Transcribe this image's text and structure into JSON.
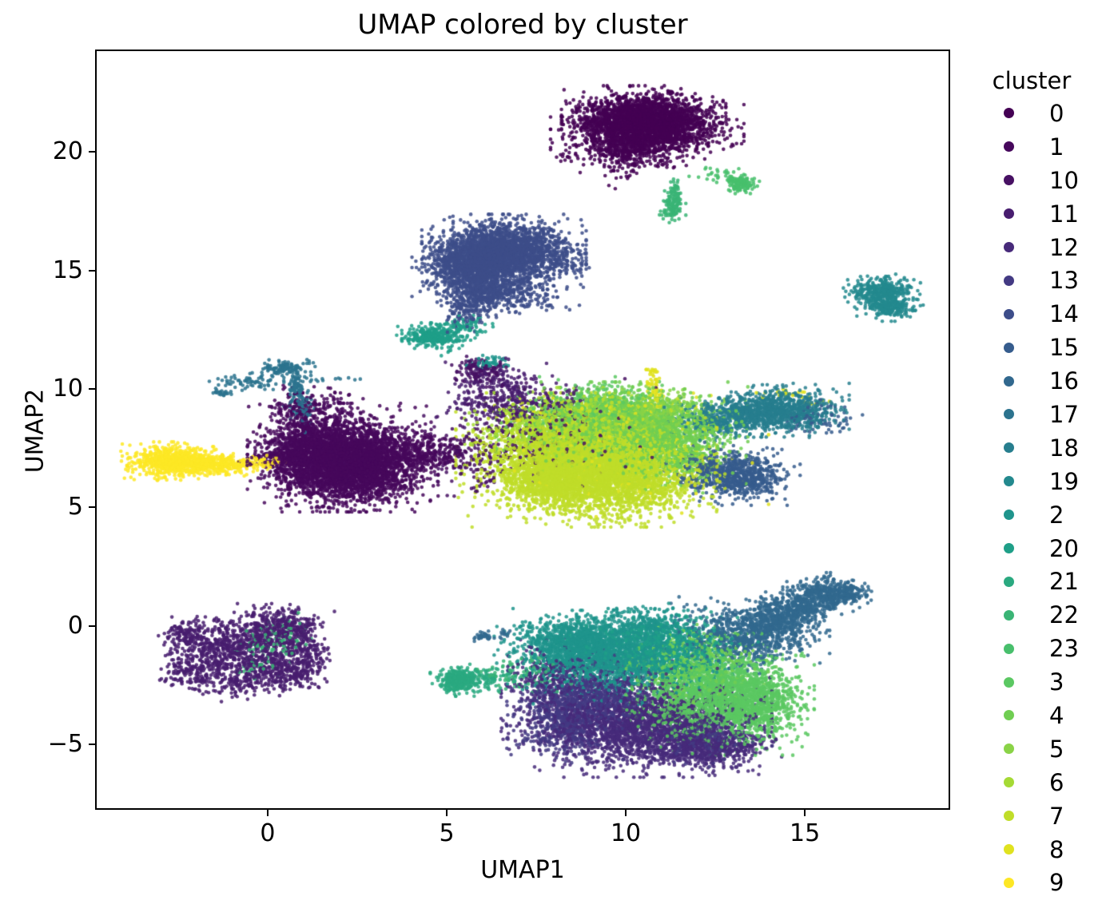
{
  "chart_data": {
    "type": "scatter",
    "title": "UMAP colored by cluster",
    "xlabel": "UMAP1",
    "ylabel": "UMAP2",
    "xlim": [
      -4.82,
      19.06
    ],
    "ylim": [
      -7.77,
      24.33
    ],
    "xticks": [
      0,
      5,
      10,
      15
    ],
    "yticks": [
      -5,
      0,
      5,
      10,
      15,
      20
    ],
    "grid": false,
    "marker": {
      "radius_px": 2.3,
      "alpha": 0.85
    },
    "legend": {
      "title": "cluster",
      "position": "right-outside",
      "entries": [
        {
          "label": "0",
          "color": "#440154"
        },
        {
          "label": "1",
          "color": "#46085c"
        },
        {
          "label": "10",
          "color": "#471063"
        },
        {
          "label": "11",
          "color": "#481d6f"
        },
        {
          "label": "12",
          "color": "#472a7a"
        },
        {
          "label": "13",
          "color": "#433a83"
        },
        {
          "label": "14",
          "color": "#3d4d8a"
        },
        {
          "label": "15",
          "color": "#365c8d"
        },
        {
          "label": "16",
          "color": "#31688e"
        },
        {
          "label": "17",
          "color": "#2c738e"
        },
        {
          "label": "18",
          "color": "#277e8e"
        },
        {
          "label": "19",
          "color": "#23898e"
        },
        {
          "label": "2",
          "color": "#1f948c"
        },
        {
          "label": "20",
          "color": "#1f9f88"
        },
        {
          "label": "21",
          "color": "#2aa980"
        },
        {
          "label": "22",
          "color": "#3ab475"
        },
        {
          "label": "23",
          "color": "#48bf6c"
        },
        {
          "label": "3",
          "color": "#5bc862"
        },
        {
          "label": "4",
          "color": "#70ce52"
        },
        {
          "label": "5",
          "color": "#8ad347"
        },
        {
          "label": "6",
          "color": "#a5da35"
        },
        {
          "label": "7",
          "color": "#c0dd29"
        },
        {
          "label": "8",
          "color": "#e0e21f"
        },
        {
          "label": "9",
          "color": "#fde725"
        }
      ]
    },
    "blobs": [
      {
        "c": "0",
        "n": 1700,
        "x": 10.5,
        "y": 21.45,
        "sx": 0.85,
        "sy": 0.5
      },
      {
        "c": "0",
        "n": 1300,
        "x": 10.6,
        "y": 20.85,
        "sx": 1.0,
        "sy": 0.5
      },
      {
        "c": "0",
        "n": 260,
        "x": 10.05,
        "y": 20.15,
        "sx": 0.55,
        "sy": 0.3
      },
      {
        "c": "0",
        "n": 60,
        "x": 9.85,
        "y": 19.4,
        "sx": 0.3,
        "sy": 0.35
      },
      {
        "c": "0",
        "n": 25,
        "x": 11.2,
        "y": 19.7,
        "sx": 0.3,
        "sy": 0.2
      },
      {
        "c": "0",
        "n": 15,
        "x": 8.4,
        "y": 19.9,
        "sx": 0.2,
        "sy": 0.3
      },
      {
        "c": "23",
        "n": 130,
        "x": 13.2,
        "y": 18.68,
        "sx": 0.2,
        "sy": 0.16
      },
      {
        "c": "23",
        "n": 25,
        "x": 12.55,
        "y": 19.05,
        "sx": 0.3,
        "sy": 0.14
      },
      {
        "c": "22",
        "n": 35,
        "x": 11.37,
        "y": 18.45,
        "sx": 0.07,
        "sy": 0.3
      },
      {
        "c": "22",
        "n": 110,
        "x": 11.3,
        "y": 17.7,
        "sx": 0.14,
        "sy": 0.28
      },
      {
        "c": "14",
        "n": 2400,
        "x": 6.6,
        "y": 15.75,
        "sx": 0.85,
        "sy": 0.6
      },
      {
        "c": "14",
        "n": 800,
        "x": 5.65,
        "y": 15.0,
        "sx": 0.6,
        "sy": 0.55
      },
      {
        "c": "14",
        "n": 450,
        "x": 6.2,
        "y": 14.1,
        "sx": 0.55,
        "sy": 0.4
      },
      {
        "c": "14",
        "n": 130,
        "x": 5.6,
        "y": 13.3,
        "sx": 0.3,
        "sy": 0.35
      },
      {
        "c": "14",
        "n": 60,
        "x": 7.6,
        "y": 13.8,
        "sx": 0.45,
        "sy": 0.3
      },
      {
        "c": "14",
        "n": 50,
        "x": 8.4,
        "y": 15.3,
        "sx": 0.3,
        "sy": 0.4
      },
      {
        "c": "20",
        "n": 300,
        "x": 4.62,
        "y": 12.25,
        "sx": 0.38,
        "sy": 0.2
      },
      {
        "c": "20",
        "n": 70,
        "x": 5.5,
        "y": 12.6,
        "sx": 0.35,
        "sy": 0.22
      },
      {
        "c": "20",
        "n": 15,
        "x": 5.0,
        "y": 11.7,
        "sx": 0.2,
        "sy": 0.25
      },
      {
        "c": "19",
        "n": 380,
        "x": 17.15,
        "y": 14.1,
        "sx": 0.4,
        "sy": 0.3
      },
      {
        "c": "19",
        "n": 200,
        "x": 17.4,
        "y": 13.45,
        "sx": 0.35,
        "sy": 0.22
      },
      {
        "c": "9",
        "n": 620,
        "x": -2.75,
        "y": 6.95,
        "sx": 0.5,
        "sy": 0.3
      },
      {
        "c": "9",
        "n": 300,
        "x": -1.8,
        "y": 6.85,
        "sx": 0.45,
        "sy": 0.22
      },
      {
        "c": "9",
        "n": 130,
        "x": -0.9,
        "y": 6.8,
        "sx": 0.4,
        "sy": 0.18
      },
      {
        "c": "9",
        "n": 40,
        "x": -0.15,
        "y": 6.9,
        "sx": 0.3,
        "sy": 0.15
      },
      {
        "c": "1",
        "n": 3000,
        "x": 2.0,
        "y": 7.1,
        "sx": 0.95,
        "sy": 0.85
      },
      {
        "c": "1",
        "n": 1200,
        "x": 2.6,
        "y": 6.5,
        "sx": 0.8,
        "sy": 0.6
      },
      {
        "c": "1",
        "n": 500,
        "x": 1.0,
        "y": 7.4,
        "sx": 0.5,
        "sy": 0.5
      },
      {
        "c": "1",
        "n": 260,
        "x": 3.9,
        "y": 7.3,
        "sx": 0.55,
        "sy": 0.45
      },
      {
        "c": "1",
        "n": 120,
        "x": 4.8,
        "y": 7.3,
        "sx": 0.5,
        "sy": 0.35
      },
      {
        "c": "1",
        "n": 150,
        "x": 0.8,
        "y": 9.0,
        "sx": 0.4,
        "sy": 0.45
      },
      {
        "c": "1",
        "n": 60,
        "x": 1.7,
        "y": 9.4,
        "sx": 0.5,
        "sy": 0.3
      },
      {
        "c": "1",
        "n": 40,
        "x": 0.0,
        "y": 6.9,
        "sx": 0.35,
        "sy": 0.25
      },
      {
        "c": "17",
        "n": 110,
        "x": 0.45,
        "y": 10.85,
        "sx": 0.35,
        "sy": 0.2
      },
      {
        "c": "17",
        "n": 60,
        "x": -0.55,
        "y": 10.3,
        "sx": 0.4,
        "sy": 0.14
      },
      {
        "c": "17",
        "n": 25,
        "x": -1.35,
        "y": 9.9,
        "sx": 0.15,
        "sy": 0.1
      },
      {
        "c": "17",
        "n": 80,
        "x": 0.8,
        "y": 10.05,
        "sx": 0.13,
        "sy": 0.35
      },
      {
        "c": "17",
        "n": 60,
        "x": 0.95,
        "y": 9.2,
        "sx": 0.16,
        "sy": 0.4
      },
      {
        "c": "17",
        "n": 14,
        "x": 1.9,
        "y": 10.4,
        "sx": 0.45,
        "sy": 0.12
      },
      {
        "c": "7",
        "n": 3600,
        "x": 8.9,
        "y": 7.0,
        "sx": 1.35,
        "sy": 1.05
      },
      {
        "c": "7",
        "n": 1400,
        "x": 9.8,
        "y": 6.3,
        "sx": 1.1,
        "sy": 0.75
      },
      {
        "c": "7",
        "n": 700,
        "x": 8.0,
        "y": 6.1,
        "sx": 0.8,
        "sy": 0.55
      },
      {
        "c": "6",
        "n": 900,
        "x": 8.2,
        "y": 8.3,
        "sx": 1.0,
        "sy": 0.65
      },
      {
        "c": "4",
        "n": 1700,
        "x": 9.9,
        "y": 8.4,
        "sx": 1.3,
        "sy": 0.7
      },
      {
        "c": "4",
        "n": 700,
        "x": 11.2,
        "y": 7.5,
        "sx": 0.8,
        "sy": 0.7
      },
      {
        "c": "5",
        "n": 500,
        "x": 10.6,
        "y": 8.9,
        "sx": 0.8,
        "sy": 0.45
      },
      {
        "c": "3",
        "n": 300,
        "x": 9.0,
        "y": 9.3,
        "sx": 0.9,
        "sy": 0.45
      },
      {
        "c": "8",
        "n": 150,
        "x": 9.4,
        "y": 7.3,
        "sx": 1.7,
        "sy": 1.0
      },
      {
        "c": "8",
        "n": 120,
        "x": 9.8,
        "y": 8.8,
        "sx": 1.3,
        "sy": 0.55
      },
      {
        "c": "8",
        "n": 50,
        "x": 10.78,
        "y": 10.0,
        "sx": 0.1,
        "sy": 0.45
      },
      {
        "c": "8",
        "n": 12,
        "x": 10.75,
        "y": 10.7,
        "sx": 0.12,
        "sy": 0.12
      },
      {
        "c": "10",
        "n": 260,
        "x": 7.6,
        "y": 8.0,
        "sx": 1.2,
        "sy": 0.9
      },
      {
        "c": "11",
        "n": 300,
        "x": 7.0,
        "y": 9.3,
        "sx": 0.85,
        "sy": 0.55
      },
      {
        "c": "10",
        "n": 140,
        "x": 5.8,
        "y": 7.1,
        "sx": 0.6,
        "sy": 0.7
      },
      {
        "c": "11",
        "n": 60,
        "x": 6.2,
        "y": 9.9,
        "sx": 0.6,
        "sy": 0.5
      },
      {
        "c": "10",
        "n": 130,
        "x": 5.95,
        "y": 10.8,
        "sx": 0.3,
        "sy": 0.28
      },
      {
        "c": "2",
        "n": 50,
        "x": 6.1,
        "y": 11.08,
        "sx": 0.28,
        "sy": 0.13
      },
      {
        "c": "11",
        "n": 70,
        "x": 6.6,
        "y": 10.35,
        "sx": 0.5,
        "sy": 0.35
      },
      {
        "c": "18",
        "n": 800,
        "x": 14.35,
        "y": 9.1,
        "sx": 0.7,
        "sy": 0.42
      },
      {
        "c": "18",
        "n": 450,
        "x": 13.1,
        "y": 8.9,
        "sx": 0.75,
        "sy": 0.35
      },
      {
        "c": "18",
        "n": 100,
        "x": 12.45,
        "y": 8.5,
        "sx": 0.45,
        "sy": 0.3
      },
      {
        "c": "8",
        "n": 20,
        "x": 14.4,
        "y": 9.8,
        "sx": 0.45,
        "sy": 0.12
      },
      {
        "c": "8",
        "n": 8,
        "x": 15.15,
        "y": 9.4,
        "sx": 0.2,
        "sy": 0.1
      },
      {
        "c": "15",
        "n": 80,
        "x": 15.4,
        "y": 8.8,
        "sx": 0.45,
        "sy": 0.35
      },
      {
        "c": "15",
        "n": 650,
        "x": 13.25,
        "y": 6.3,
        "sx": 0.6,
        "sy": 0.45
      },
      {
        "c": "15",
        "n": 130,
        "x": 12.4,
        "y": 6.8,
        "sx": 0.45,
        "sy": 0.35
      },
      {
        "c": "15",
        "n": 60,
        "x": 12.0,
        "y": 6.2,
        "sx": 0.35,
        "sy": 0.3
      },
      {
        "c": "11",
        "n": 330,
        "x": -1.55,
        "y": -1.1,
        "sx": 0.5,
        "sy": 0.7
      },
      {
        "c": "11",
        "n": 380,
        "x": -0.35,
        "y": -0.55,
        "sx": 0.6,
        "sy": 0.55
      },
      {
        "c": "11",
        "n": 330,
        "x": 0.3,
        "y": -1.9,
        "sx": 0.6,
        "sy": 0.45
      },
      {
        "c": "11",
        "n": 240,
        "x": 0.65,
        "y": -0.05,
        "sx": 0.45,
        "sy": 0.35
      },
      {
        "c": "11",
        "n": 150,
        "x": 1.05,
        "y": -1.2,
        "sx": 0.3,
        "sy": 0.5
      },
      {
        "c": "11",
        "n": 120,
        "x": -2.3,
        "y": -0.4,
        "sx": 0.3,
        "sy": 0.3
      },
      {
        "c": "11",
        "n": 120,
        "x": -2.2,
        "y": -2.0,
        "sx": 0.35,
        "sy": 0.35
      },
      {
        "c": "11",
        "n": 100,
        "x": -0.9,
        "y": -2.4,
        "sx": 0.5,
        "sy": 0.3
      },
      {
        "c": "11",
        "n": 60,
        "x": -0.5,
        "y": -1.4,
        "sx": 0.4,
        "sy": 0.4
      },
      {
        "c": "22",
        "n": 60,
        "x": -0.05,
        "y": -0.9,
        "sx": 0.35,
        "sy": 0.45
      },
      {
        "c": "22",
        "n": 45,
        "x": 0.45,
        "y": -0.4,
        "sx": 0.3,
        "sy": 0.35
      },
      {
        "c": "22",
        "n": 20,
        "x": -0.4,
        "y": -1.8,
        "sx": 0.3,
        "sy": 0.2
      },
      {
        "c": "2",
        "n": 1800,
        "x": 9.7,
        "y": -1.3,
        "sx": 1.25,
        "sy": 0.75
      },
      {
        "c": "2",
        "n": 700,
        "x": 8.5,
        "y": -0.7,
        "sx": 0.7,
        "sy": 0.5
      },
      {
        "c": "20",
        "n": 700,
        "x": 11.0,
        "y": -0.9,
        "sx": 1.0,
        "sy": 0.55
      },
      {
        "c": "2",
        "n": 300,
        "x": 10.5,
        "y": 0.0,
        "sx": 0.8,
        "sy": 0.35
      },
      {
        "c": "3",
        "n": 1800,
        "x": 12.7,
        "y": -2.9,
        "sx": 0.95,
        "sy": 0.95
      },
      {
        "c": "3",
        "n": 600,
        "x": 13.6,
        "y": -3.3,
        "sx": 0.55,
        "sy": 0.7
      },
      {
        "c": "4",
        "n": 500,
        "x": 11.9,
        "y": -1.7,
        "sx": 0.85,
        "sy": 0.65
      },
      {
        "c": "3",
        "n": 250,
        "x": 11.5,
        "y": -3.6,
        "sx": 0.7,
        "sy": 0.6
      },
      {
        "c": "12",
        "n": 2200,
        "x": 10.3,
        "y": -4.1,
        "sx": 1.4,
        "sy": 0.85
      },
      {
        "c": "13",
        "n": 900,
        "x": 9.0,
        "y": -3.0,
        "sx": 0.85,
        "sy": 0.75
      },
      {
        "c": "12",
        "n": 500,
        "x": 11.9,
        "y": -5.1,
        "sx": 0.85,
        "sy": 0.45
      },
      {
        "c": "13",
        "n": 350,
        "x": 8.3,
        "y": -4.3,
        "sx": 0.6,
        "sy": 0.55
      },
      {
        "c": "12",
        "n": 220,
        "x": 7.9,
        "y": -2.2,
        "sx": 0.5,
        "sy": 0.65
      },
      {
        "c": "12",
        "n": 150,
        "x": 12.9,
        "y": -5.2,
        "sx": 0.6,
        "sy": 0.4
      },
      {
        "c": "13",
        "n": 200,
        "x": 12.2,
        "y": -4.6,
        "sx": 0.7,
        "sy": 0.5
      },
      {
        "c": "16",
        "n": 800,
        "x": 13.4,
        "y": -0.4,
        "sx": 0.85,
        "sy": 0.6
      },
      {
        "c": "16",
        "n": 400,
        "x": 14.3,
        "y": 0.35,
        "sx": 0.55,
        "sy": 0.4
      },
      {
        "c": "16",
        "n": 420,
        "x": 15.6,
        "y": 1.35,
        "sx": 0.45,
        "sy": 0.33
      },
      {
        "c": "16",
        "n": 150,
        "x": 14.9,
        "y": 0.8,
        "sx": 0.3,
        "sy": 0.25
      },
      {
        "c": "16",
        "n": 60,
        "x": 16.35,
        "y": 1.4,
        "sx": 0.22,
        "sy": 0.18
      },
      {
        "c": "21",
        "n": 320,
        "x": 5.35,
        "y": -2.3,
        "sx": 0.3,
        "sy": 0.25
      },
      {
        "c": "21",
        "n": 110,
        "x": 6.2,
        "y": -2.2,
        "sx": 0.55,
        "sy": 0.22
      },
      {
        "c": "22",
        "n": 90,
        "x": 7.2,
        "y": -2.1,
        "sx": 0.55,
        "sy": 0.35
      },
      {
        "c": "16",
        "n": 35,
        "x": 6.05,
        "y": -0.45,
        "sx": 0.18,
        "sy": 0.09
      },
      {
        "c": "16",
        "n": 10,
        "x": 6.6,
        "y": -0.3,
        "sx": 0.12,
        "sy": 0.07
      }
    ]
  }
}
